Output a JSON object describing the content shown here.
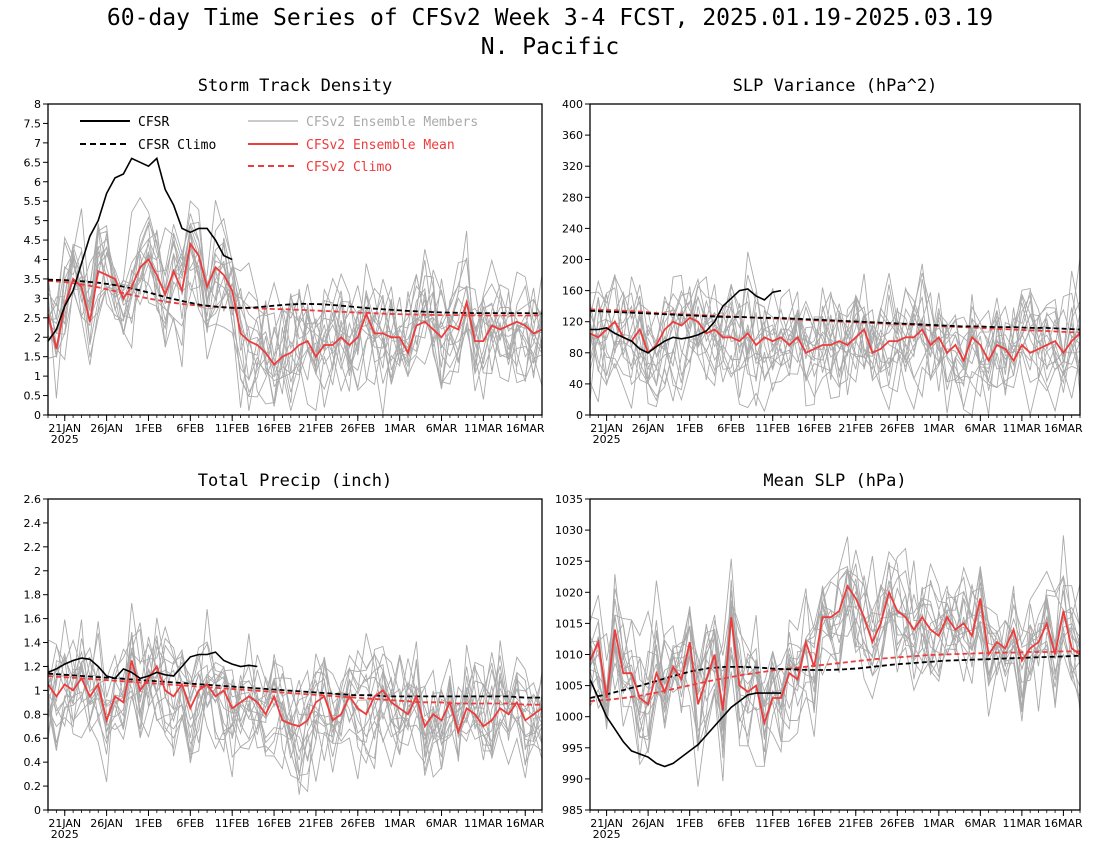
{
  "figure": {
    "title": "60-day Time Series of CFSv2 Week 3-4 FCST, 2025.01.19-2025.03.19",
    "subtitle": "N. Pacific"
  },
  "colors": {
    "cfsr": "#000000",
    "members": "#aaaaaa",
    "ens_mean": "#ee3b3b",
    "background": "#ffffff"
  },
  "legend": [
    {
      "label": "CFSR",
      "series": "cfsr",
      "color": "#000000",
      "dashed": false
    },
    {
      "label": "CFSR Climo",
      "series": "cfsr_climo",
      "color": "#000000",
      "dashed": true
    },
    {
      "label": "CFSv2 Ensemble Members",
      "series": "members",
      "color": "#aaaaaa",
      "dashed": false
    },
    {
      "label": "CFSv2 Ensemble Mean",
      "series": "ens_mean",
      "color": "#ee3b3b",
      "dashed": false
    },
    {
      "label": "CFSv2 Climo",
      "series": "cfsv2_climo",
      "color": "#ee3b3b",
      "dashed": true
    }
  ],
  "chart_data": [
    {
      "type": "line",
      "title": "Storm Track Density",
      "x_ticks": [
        "21JAN",
        "26JAN",
        "1FEB",
        "6FEB",
        "11FEB",
        "16FEB",
        "21FEB",
        "26FEB",
        "1MAR",
        "6MAR",
        "11MAR",
        "16MAR"
      ],
      "x_year": "2025",
      "ylim": [
        0,
        8
      ],
      "y_ticks": [
        "0",
        "0.5",
        "1",
        "1.5",
        "2",
        "2.5",
        "3",
        "3.5",
        "4",
        "4.5",
        "5",
        "5.5",
        "6",
        "6.5",
        "7",
        "7.5",
        "8"
      ],
      "series": [
        {
          "name": "CFSR",
          "values": [
            1.9,
            2.2,
            2.8,
            3.2,
            3.9,
            4.6,
            5.0,
            5.7,
            6.1,
            6.2,
            6.6,
            6.5,
            6.4,
            6.6,
            5.8,
            5.4,
            4.8,
            4.7,
            4.8,
            4.8,
            4.5,
            4.1,
            4.0
          ]
        },
        {
          "name": "CFSR Climo",
          "values": [
            3.48,
            3.47,
            3.44,
            3.4,
            3.34,
            3.25,
            3.14,
            3.02,
            2.92,
            2.83,
            2.78,
            2.75,
            2.76,
            2.8,
            2.84,
            2.86,
            2.85,
            2.82,
            2.78,
            2.74,
            2.71,
            2.68,
            2.66,
            2.64,
            2.63,
            2.62,
            2.62,
            2.62,
            2.62,
            2.61
          ]
        },
        {
          "name": "CFSv2 Ensemble Mean",
          "values": [
            2.6,
            1.7,
            2.8,
            3.5,
            3.3,
            2.4,
            3.7,
            3.6,
            3.5,
            3.0,
            3.3,
            3.8,
            4.0,
            3.6,
            3.1,
            3.7,
            3.2,
            4.4,
            4.1,
            3.3,
            3.8,
            3.6,
            3.2,
            2.1,
            1.9,
            1.8,
            1.6,
            1.3,
            1.5,
            1.6,
            1.8,
            1.9,
            1.5,
            1.8,
            1.8,
            2.0,
            1.8,
            2.0,
            2.6,
            2.1,
            2.1,
            2.0,
            2.0,
            1.6,
            2.3,
            2.4,
            2.2,
            2.0,
            2.3,
            2.2,
            2.9,
            1.9,
            1.9,
            2.3,
            2.2,
            2.3,
            2.4,
            2.3,
            2.1,
            2.2
          ]
        },
        {
          "name": "CFSv2 Climo",
          "values": [
            3.45,
            3.42,
            3.36,
            3.28,
            3.18,
            3.08,
            2.99,
            2.91,
            2.85,
            2.81,
            2.78,
            2.76,
            2.75,
            2.73,
            2.72,
            2.7,
            2.68,
            2.66,
            2.64,
            2.62,
            2.6,
            2.59,
            2.58,
            2.57,
            2.57,
            2.56,
            2.56,
            2.56,
            2.56,
            2.56
          ]
        }
      ]
    },
    {
      "type": "line",
      "title": "SLP Variance (hPa^2)",
      "x_ticks": [
        "21JAN",
        "26JAN",
        "1FEB",
        "6FEB",
        "11FEB",
        "16FEB",
        "21FEB",
        "26FEB",
        "1MAR",
        "6MAR",
        "11MAR",
        "16MAR"
      ],
      "x_year": "2025",
      "ylim": [
        0,
        400
      ],
      "y_ticks": [
        "0",
        "40",
        "80",
        "120",
        "160",
        "200",
        "240",
        "280",
        "320",
        "360",
        "400"
      ],
      "series": [
        {
          "name": "CFSR",
          "values": [
            110,
            110,
            112,
            105,
            100,
            95,
            85,
            80,
            88,
            95,
            100,
            98,
            100,
            103,
            108,
            120,
            140,
            150,
            160,
            162,
            153,
            148,
            158,
            160
          ]
        },
        {
          "name": "CFSR Climo",
          "values": [
            134,
            133,
            132,
            131,
            130,
            129,
            128,
            127,
            126,
            126,
            125,
            125,
            124,
            123,
            122,
            121,
            120,
            119,
            118,
            117,
            116,
            115,
            114,
            114,
            113,
            113,
            112,
            112,
            111,
            110
          ]
        },
        {
          "name": "CFSv2 Ensemble Mean",
          "values": [
            105,
            100,
            110,
            120,
            100,
            95,
            110,
            80,
            90,
            110,
            120,
            115,
            125,
            120,
            105,
            110,
            100,
            100,
            95,
            105,
            90,
            100,
            95,
            100,
            90,
            100,
            80,
            85,
            90,
            90,
            95,
            90,
            100,
            110,
            80,
            85,
            95,
            95,
            100,
            100,
            110,
            90,
            100,
            80,
            90,
            70,
            100,
            90,
            70,
            90,
            85,
            70,
            90,
            80,
            85,
            90,
            95,
            80,
            95,
            105
          ]
        },
        {
          "name": "CFSv2 Climo",
          "values": [
            136,
            135,
            134,
            133,
            131,
            130,
            129,
            128,
            127,
            126,
            125,
            124,
            123,
            122,
            121,
            120,
            119,
            118,
            117,
            116,
            115,
            114,
            113,
            112,
            111,
            110,
            109,
            108,
            107,
            106
          ]
        }
      ]
    },
    {
      "type": "line",
      "title": "Total Precip (inch)",
      "x_ticks": [
        "21JAN",
        "26JAN",
        "1FEB",
        "6FEB",
        "11FEB",
        "16FEB",
        "21FEB",
        "26FEB",
        "1MAR",
        "6MAR",
        "11MAR",
        "16MAR"
      ],
      "x_year": "2025",
      "ylim": [
        0,
        2.6
      ],
      "y_ticks": [
        "0",
        "0.2",
        "0.4",
        "0.6",
        "0.8",
        "1",
        "1.2",
        "1.4",
        "1.6",
        "1.8",
        "2",
        "2.2",
        "2.4",
        "2.6"
      ],
      "series": [
        {
          "name": "CFSR",
          "values": [
            1.15,
            1.18,
            1.22,
            1.25,
            1.27,
            1.26,
            1.2,
            1.12,
            1.1,
            1.18,
            1.15,
            1.1,
            1.12,
            1.15,
            1.13,
            1.12,
            1.2,
            1.28,
            1.3,
            1.3,
            1.32,
            1.25,
            1.22,
            1.2,
            1.21,
            1.2
          ]
        },
        {
          "name": "CFSR Climo",
          "values": [
            1.14,
            1.13,
            1.12,
            1.11,
            1.1,
            1.09,
            1.08,
            1.07,
            1.06,
            1.05,
            1.04,
            1.03,
            1.02,
            1.01,
            1.0,
            0.99,
            0.98,
            0.97,
            0.96,
            0.96,
            0.95,
            0.95,
            0.95,
            0.95,
            0.95,
            0.95,
            0.95,
            0.95,
            0.94,
            0.94
          ]
        },
        {
          "name": "CFSv2 Ensemble Mean",
          "values": [
            1.05,
            0.95,
            1.05,
            1.0,
            1.1,
            0.95,
            1.05,
            0.75,
            0.95,
            0.9,
            1.25,
            1.0,
            1.1,
            1.2,
            1.0,
            0.95,
            1.05,
            0.85,
            1.0,
            1.05,
            0.95,
            1.0,
            0.85,
            0.9,
            0.95,
            0.9,
            0.8,
            0.95,
            0.75,
            0.72,
            0.7,
            0.75,
            0.9,
            0.95,
            0.75,
            0.8,
            0.95,
            0.85,
            0.8,
            0.95,
            1.0,
            0.9,
            0.85,
            0.8,
            0.95,
            0.7,
            0.8,
            0.75,
            0.9,
            0.65,
            0.85,
            0.8,
            0.7,
            0.75,
            0.85,
            0.8,
            0.9,
            0.75,
            0.8,
            0.85
          ]
        },
        {
          "name": "CFSv2 Climo",
          "values": [
            1.12,
            1.11,
            1.1,
            1.09,
            1.08,
            1.07,
            1.06,
            1.05,
            1.04,
            1.03,
            1.02,
            1.01,
            1.0,
            0.99,
            0.98,
            0.97,
            0.96,
            0.95,
            0.94,
            0.93,
            0.92,
            0.91,
            0.9,
            0.9,
            0.89,
            0.89,
            0.89,
            0.89,
            0.88,
            0.88
          ]
        }
      ]
    },
    {
      "type": "line",
      "title": "Mean SLP (hPa)",
      "x_ticks": [
        "21JAN",
        "26JAN",
        "1FEB",
        "6FEB",
        "11FEB",
        "16FEB",
        "21FEB",
        "26FEB",
        "1MAR",
        "6MAR",
        "11MAR",
        "16MAR"
      ],
      "x_year": "2025",
      "ylim": [
        985,
        1035
      ],
      "y_ticks": [
        "985",
        "990",
        "995",
        "1000",
        "1005",
        "1010",
        "1015",
        "1020",
        "1025",
        "1030",
        "1035"
      ],
      "series": [
        {
          "name": "CFSR",
          "values": [
            1006,
            1003,
            1000,
            998,
            996,
            994.5,
            994,
            993.5,
            992.5,
            992,
            992.5,
            993.5,
            994.5,
            995.5,
            997,
            998.5,
            1000,
            1001.5,
            1002.5,
            1003.5,
            1003.8,
            1003.8,
            1003.8,
            1003.8
          ]
        },
        {
          "name": "CFSR Climo",
          "values": [
            1003,
            1003.6,
            1004.3,
            1005,
            1005.8,
            1006.6,
            1007.3,
            1007.8,
            1008,
            1008,
            1007.9,
            1007.7,
            1007.6,
            1007.5,
            1007.5,
            1007.6,
            1007.8,
            1008.1,
            1008.4,
            1008.6,
            1008.8,
            1009,
            1009.1,
            1009.2,
            1009.3,
            1009.4,
            1009.5,
            1009.6,
            1009.7,
            1009.8
          ]
        },
        {
          "name": "CFSv2 Ensemble Mean",
          "values": [
            1009,
            1012,
            1003,
            1014,
            1007,
            1007,
            1003,
            1002,
            1007,
            1004,
            1008,
            1006,
            1012,
            1002,
            1006,
            1010,
            1001,
            1016,
            1005,
            1004,
            1005,
            999,
            1003,
            1003,
            1007,
            1006,
            1012,
            1008,
            1016,
            1016,
            1017,
            1021,
            1019,
            1016,
            1012,
            1015,
            1020,
            1017,
            1016,
            1014,
            1016,
            1014,
            1013,
            1016,
            1014,
            1015,
            1013,
            1019,
            1010,
            1012,
            1011,
            1014,
            1009,
            1011,
            1012,
            1015,
            1010,
            1017,
            1011,
            1010
          ]
        },
        {
          "name": "CFSv2 Climo",
          "values": [
            1002.5,
            1002.7,
            1003,
            1003.4,
            1003.9,
            1004.5,
            1005.1,
            1005.7,
            1006.2,
            1006.7,
            1007.1,
            1007.5,
            1007.8,
            1008.1,
            1008.4,
            1008.7,
            1009,
            1009.3,
            1009.5,
            1009.7,
            1009.9,
            1010,
            1010.1,
            1010.2,
            1010.3,
            1010.3,
            1010.4,
            1010.4,
            1010.5,
            1010.5
          ]
        }
      ]
    }
  ]
}
